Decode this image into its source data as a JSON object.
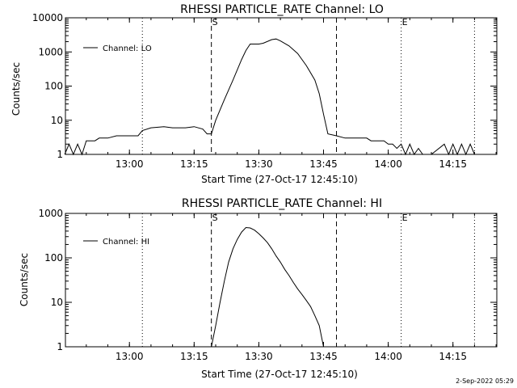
{
  "footer": {
    "timestamp": "2-Sep-2022 05:29"
  },
  "chart_data": [
    {
      "type": "line",
      "title": "RHESSI PARTICLE_RATE Channel: LO",
      "xlabel": "Start Time (27-Oct-17 12:45:10)",
      "ylabel": "Counts/sec",
      "legend": "Channel: LO",
      "legend_position": "top-left",
      "y_scale": "log",
      "ylim": [
        1,
        10000
      ],
      "y_ticks": [
        "1",
        "10",
        "100",
        "1000",
        "10000"
      ],
      "x_range": [
        "12:45:10",
        "14:25:10"
      ],
      "x_ticks": [
        "13:00",
        "13:15",
        "13:30",
        "13:45",
        "14:00",
        "14:15"
      ],
      "vertical_markers": [
        {
          "time": "13:03",
          "style": "dotted",
          "label": ""
        },
        {
          "time": "13:19",
          "style": "dashed",
          "label": "S"
        },
        {
          "time": "13:48",
          "style": "dashed",
          "label": ""
        },
        {
          "time": "14:03",
          "style": "dotted",
          "label": "E"
        },
        {
          "time": "14:20",
          "style": "dotted",
          "label": ""
        }
      ],
      "series": [
        {
          "points": [
            [
              "12:45",
              1
            ],
            [
              "12:46",
              2
            ],
            [
              "12:47",
              1
            ],
            [
              "12:48",
              2
            ],
            [
              "12:49",
              1
            ],
            [
              "12:50",
              2.5
            ],
            [
              "12:52",
              2.5
            ],
            [
              "12:53",
              3
            ],
            [
              "12:55",
              3
            ],
            [
              "12:57",
              3.5
            ],
            [
              "13:00",
              3.5
            ],
            [
              "13:02",
              3.5
            ],
            [
              "13:03",
              5
            ],
            [
              "13:05",
              6
            ],
            [
              "13:08",
              6.5
            ],
            [
              "13:10",
              6
            ],
            [
              "13:13",
              6
            ],
            [
              "13:15",
              6.5
            ],
            [
              "13:17",
              5.5
            ],
            [
              "13:18",
              4
            ],
            [
              "13:19",
              4
            ],
            [
              "13:20",
              10
            ],
            [
              "13:22",
              40
            ],
            [
              "13:24",
              150
            ],
            [
              "13:26",
              600
            ],
            [
              "13:27",
              1100
            ],
            [
              "13:28",
              1700
            ],
            [
              "13:30",
              1700
            ],
            [
              "13:31",
              1800
            ],
            [
              "13:33",
              2300
            ],
            [
              "13:34",
              2400
            ],
            [
              "13:35",
              2100
            ],
            [
              "13:37",
              1500
            ],
            [
              "13:39",
              900
            ],
            [
              "13:41",
              400
            ],
            [
              "13:43",
              150
            ],
            [
              "13:44",
              60
            ],
            [
              "13:45",
              15
            ],
            [
              "13:46",
              4
            ],
            [
              "13:48",
              3.5
            ],
            [
              "13:50",
              3
            ],
            [
              "13:53",
              3
            ],
            [
              "13:55",
              3
            ],
            [
              "13:56",
              2.5
            ],
            [
              "13:57",
              2.5
            ],
            [
              "13:59",
              2.5
            ],
            [
              "14:00",
              2
            ],
            [
              "14:01",
              2
            ],
            [
              "14:02",
              1.5
            ],
            [
              "14:03",
              2
            ],
            [
              "14:04",
              1
            ],
            [
              "14:05",
              2
            ],
            [
              "14:06",
              1
            ],
            [
              "14:07",
              1.5
            ],
            [
              "14:08",
              1
            ],
            [
              "14:10",
              1
            ],
            [
              "14:13",
              2
            ],
            [
              "14:14",
              1
            ],
            [
              "14:15",
              2
            ],
            [
              "14:16",
              1
            ],
            [
              "14:17",
              2
            ],
            [
              "14:18",
              1
            ],
            [
              "14:19",
              2
            ],
            [
              "14:20",
              1
            ]
          ]
        }
      ]
    },
    {
      "type": "line",
      "title": "RHESSI PARTICLE_RATE Channel: HI",
      "xlabel": "Start Time (27-Oct-17 12:45:10)",
      "ylabel": "Counts/sec",
      "legend": "Channel: HI",
      "legend_position": "top-left",
      "y_scale": "log",
      "ylim": [
        1,
        1000
      ],
      "y_ticks": [
        "1",
        "10",
        "100",
        "1000"
      ],
      "x_range": [
        "12:45:10",
        "14:25:10"
      ],
      "x_ticks": [
        "13:00",
        "13:15",
        "13:30",
        "13:45",
        "14:00",
        "14:15"
      ],
      "vertical_markers": [
        {
          "time": "13:03",
          "style": "dotted",
          "label": ""
        },
        {
          "time": "13:19",
          "style": "dashed",
          "label": "S"
        },
        {
          "time": "13:48",
          "style": "dashed",
          "label": ""
        },
        {
          "time": "14:03",
          "style": "dotted",
          "label": "E"
        },
        {
          "time": "14:20",
          "style": "dotted",
          "label": ""
        }
      ],
      "series": [
        {
          "points": [
            [
              "13:19",
              1
            ],
            [
              "13:20",
              3
            ],
            [
              "13:21",
              10
            ],
            [
              "13:22",
              30
            ],
            [
              "13:23",
              80
            ],
            [
              "13:24",
              160
            ],
            [
              "13:25",
              260
            ],
            [
              "13:26",
              380
            ],
            [
              "13:27",
              480
            ],
            [
              "13:28",
              470
            ],
            [
              "13:29",
              420
            ],
            [
              "13:30",
              350
            ],
            [
              "13:31",
              280
            ],
            [
              "13:32",
              220
            ],
            [
              "13:33",
              160
            ],
            [
              "13:34",
              110
            ],
            [
              "13:35",
              80
            ],
            [
              "13:36",
              55
            ],
            [
              "13:37",
              40
            ],
            [
              "13:38",
              28
            ],
            [
              "13:39",
              20
            ],
            [
              "13:40",
              15
            ],
            [
              "13:41",
              11
            ],
            [
              "13:42",
              8
            ],
            [
              "13:43",
              5
            ],
            [
              "13:44",
              3
            ],
            [
              "13:45",
              1
            ]
          ]
        }
      ]
    }
  ]
}
